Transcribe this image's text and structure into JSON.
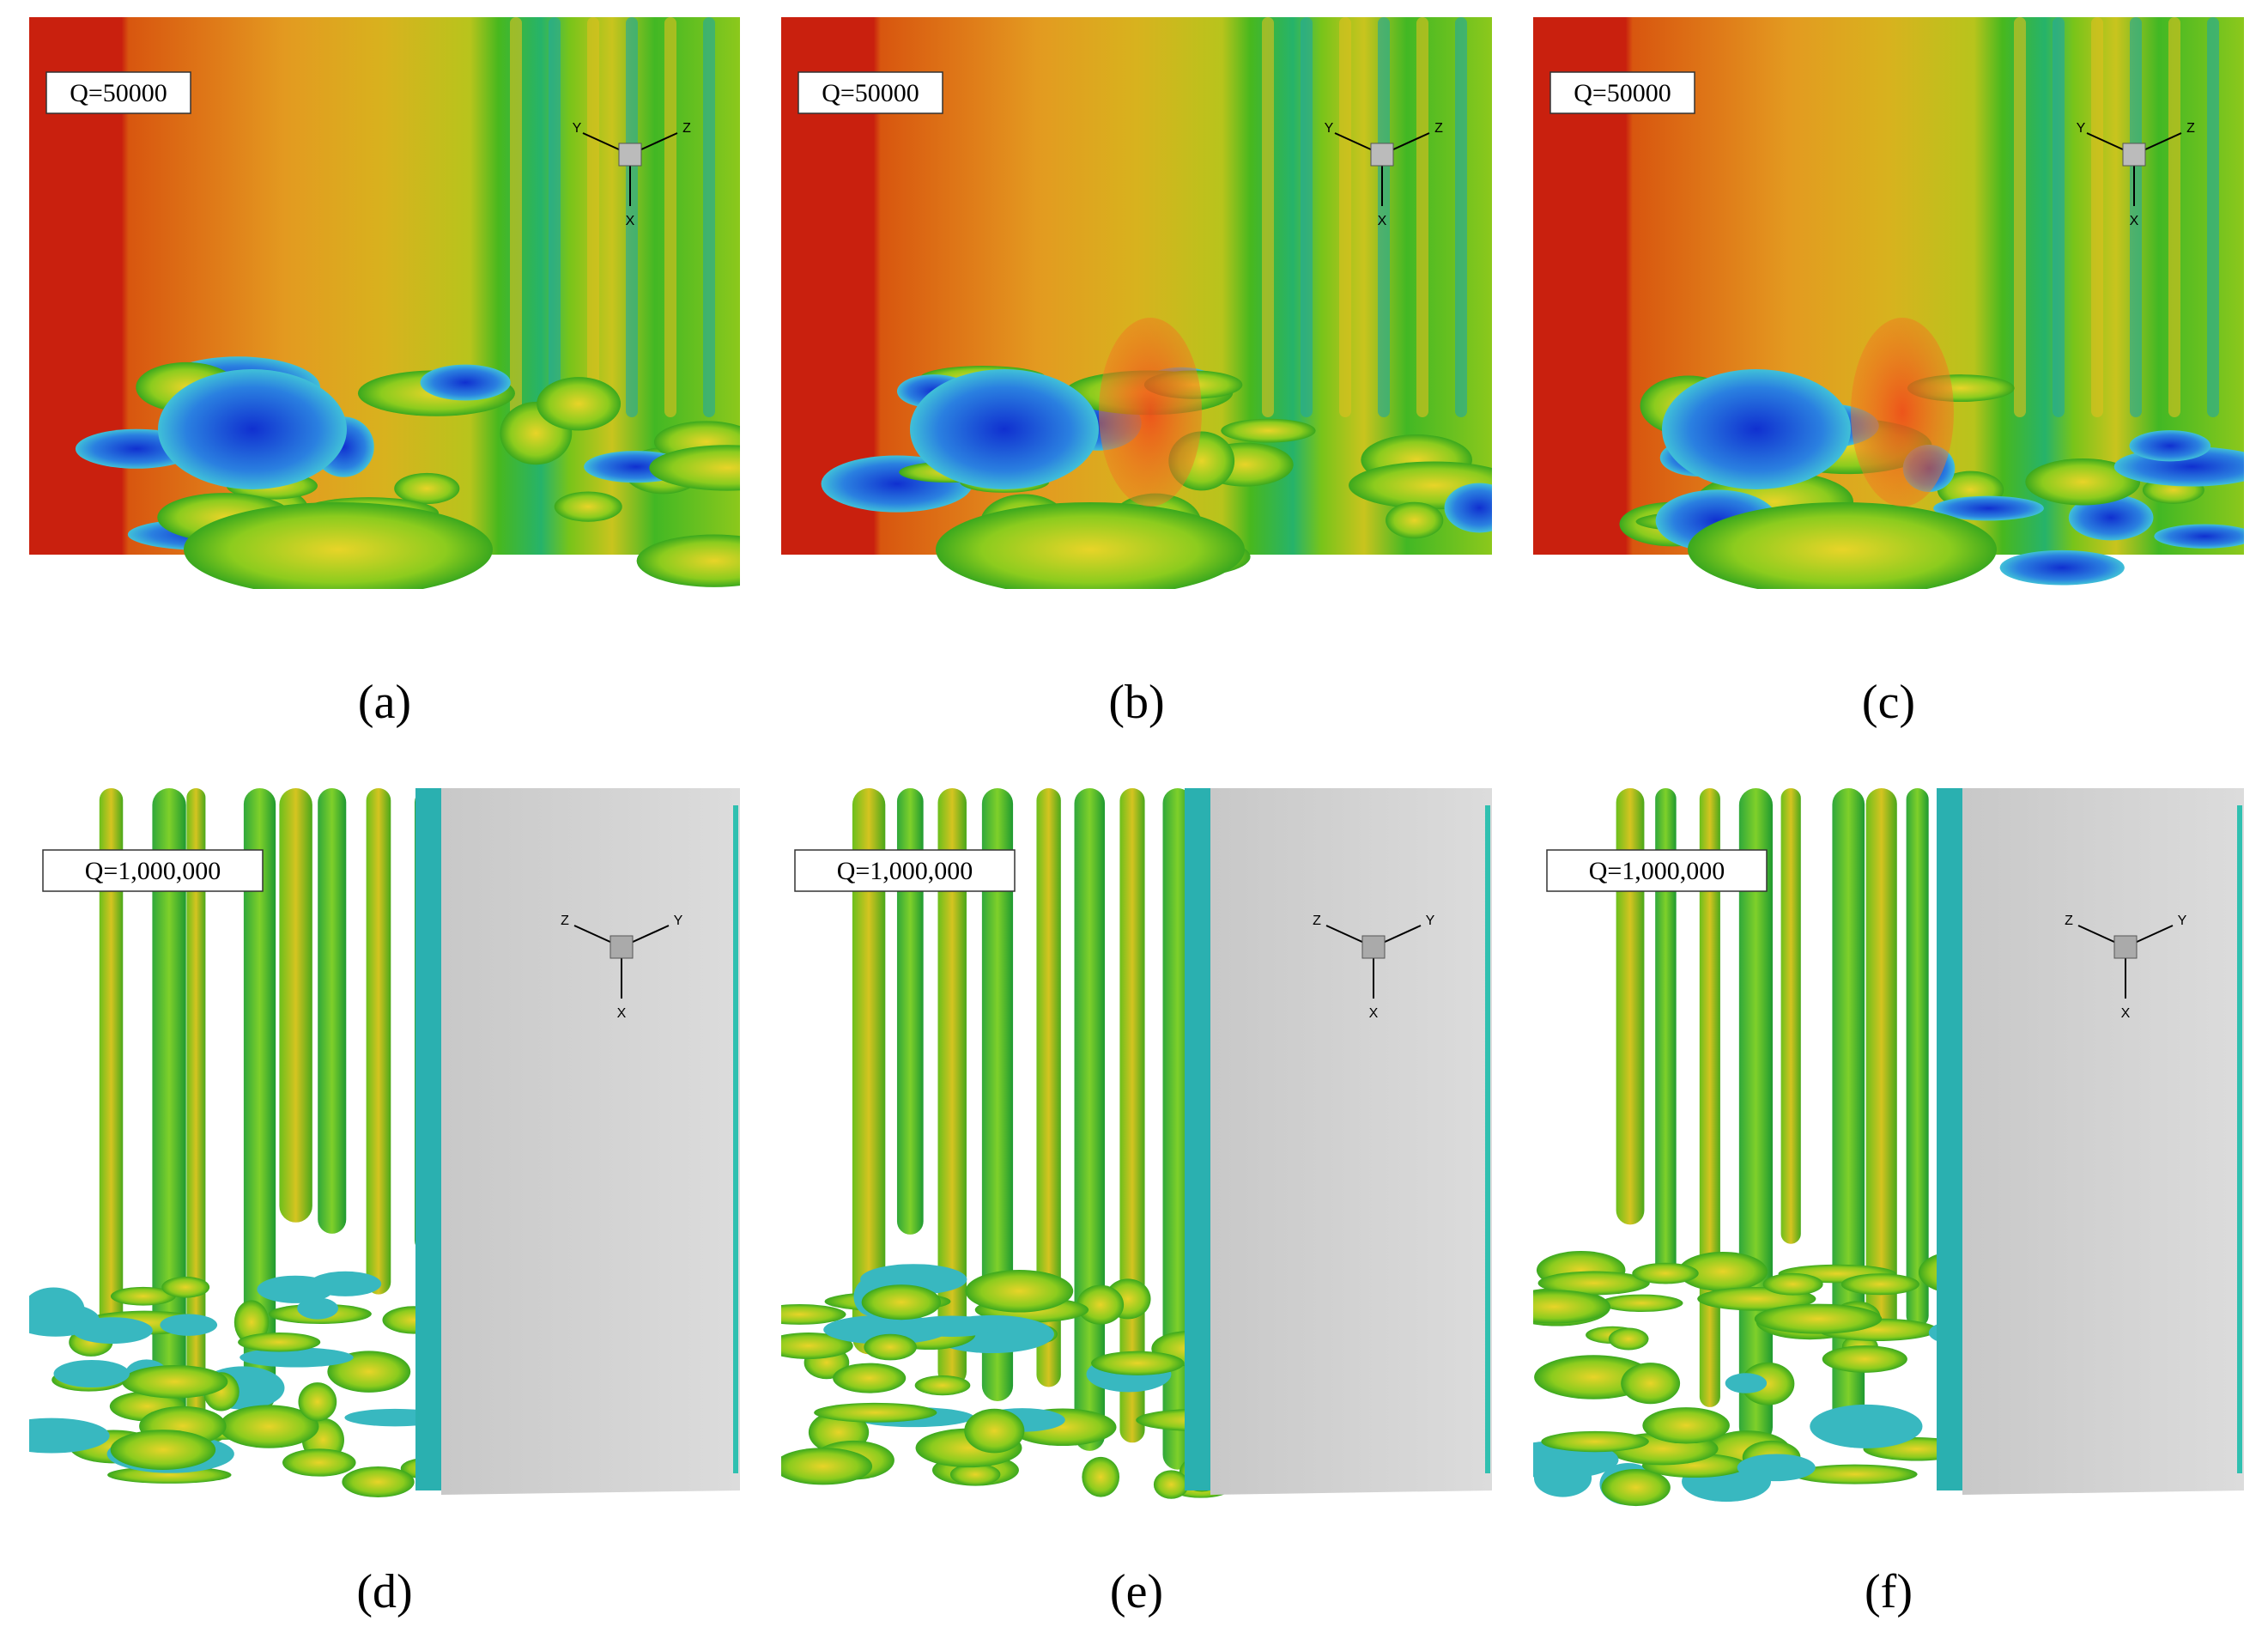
{
  "panels": [
    {
      "label": "(a)",
      "annotation": "Q=50000",
      "triad": {
        "x": "X",
        "y": "Y",
        "z": "Z"
      }
    },
    {
      "label": "(b)",
      "annotation": "Q=50000",
      "triad": {
        "x": "X",
        "y": "Y",
        "z": "Z"
      }
    },
    {
      "label": "(c)",
      "annotation": "Q=50000",
      "triad": {
        "x": "X",
        "y": "Y",
        "z": "Z"
      }
    },
    {
      "label": "(d)",
      "annotation": "Q=1,000,000",
      "triad": {
        "x": "X",
        "y": "Y",
        "z": "Z"
      }
    },
    {
      "label": "(e)",
      "annotation": "Q=1,000,000",
      "triad": {
        "x": "X",
        "y": "Y",
        "z": "Z"
      }
    },
    {
      "label": "(f)",
      "annotation": "Q=1,000,000",
      "triad": {
        "x": "X",
        "y": "Y",
        "z": "Z"
      }
    }
  ]
}
